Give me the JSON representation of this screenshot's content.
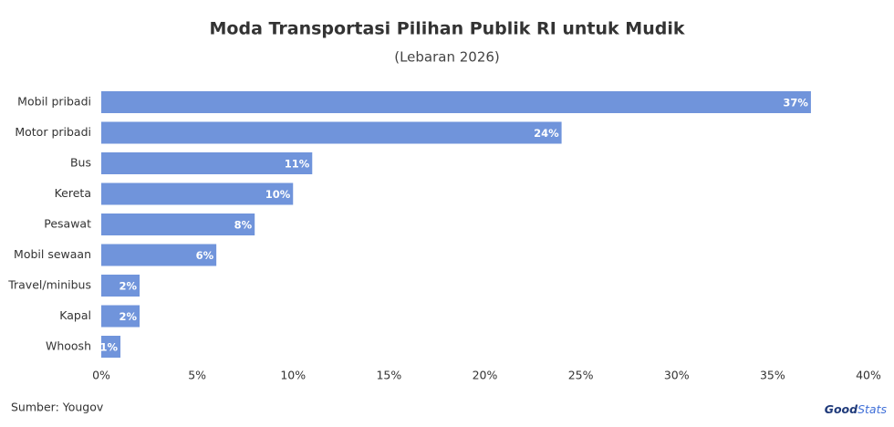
{
  "chart_data": {
    "type": "bar",
    "orientation": "horizontal",
    "title": "Moda Transportasi Pilihan Publik RI untuk Mudik",
    "subtitle": "(Lebaran 2026)",
    "categories": [
      "Mobil pribadi",
      "Motor pribadi",
      "Bus",
      "Kereta",
      "Pesawat",
      "Mobil sewaan",
      "Travel/minibus",
      "Kapal",
      "Whoosh"
    ],
    "values": [
      37,
      24,
      11,
      10,
      8,
      6,
      2,
      2,
      1
    ],
    "value_labels": [
      "37%",
      "24%",
      "11%",
      "10%",
      "8%",
      "6%",
      "2%",
      "2%",
      "1%"
    ],
    "color": "#7094db",
    "xlim": [
      0,
      40
    ],
    "xticks": [
      {
        "value": 0,
        "label": "0%"
      },
      {
        "value": 5,
        "label": "5%"
      },
      {
        "value": 10,
        "label": "10%"
      },
      {
        "value": 15,
        "label": "15%"
      },
      {
        "value": 20,
        "label": "20%"
      },
      {
        "value": 25,
        "label": "25%"
      },
      {
        "value": 30,
        "label": "30%"
      },
      {
        "value": 35,
        "label": "35%"
      },
      {
        "value": 40,
        "label": "40%"
      }
    ],
    "grid": false,
    "source": "Sumber: Yougov",
    "logo": {
      "bold": "Good",
      "light": "Stats"
    }
  }
}
